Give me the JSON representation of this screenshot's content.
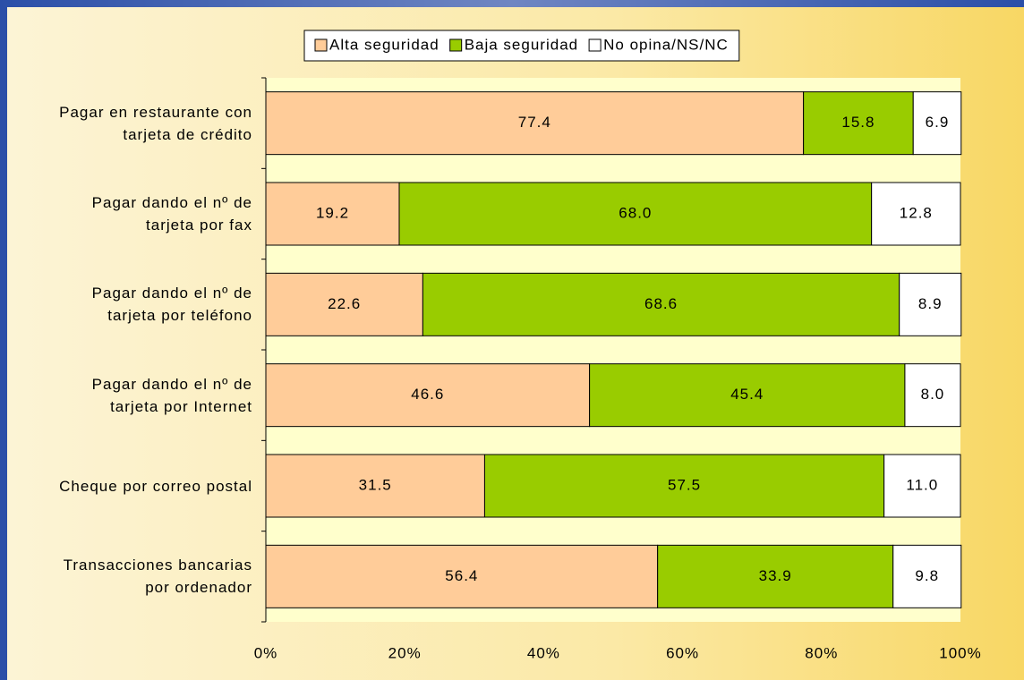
{
  "chart_data": {
    "type": "stacked_hbar",
    "categories": [
      "Pagar en restaurante con\ntarjeta de crédito",
      "Pagar dando el nº de\ntarjeta por fax",
      "Pagar dando el nº de\ntarjeta por teléfono",
      "Pagar dando el nº de\ntarjeta por Internet",
      "Cheque por correo postal",
      "Transacciones bancarias\npor ordenador"
    ],
    "series": [
      {
        "name": "Alta seguridad",
        "color": "#ffcc99",
        "values": [
          77.4,
          19.2,
          22.6,
          46.6,
          31.5,
          56.4
        ],
        "value_labels": [
          "77.4",
          "19.2",
          "22.6",
          "46.6",
          "31.5",
          "56.4"
        ]
      },
      {
        "name": "Baja seguridad",
        "color": "#99cc00",
        "values": [
          15.8,
          68.0,
          68.6,
          45.4,
          57.5,
          33.9
        ],
        "value_labels": [
          "15.8",
          "68.0",
          "68.6",
          "45.4",
          "57.5",
          "33.9"
        ]
      },
      {
        "name": "No opina/NS/NC",
        "color": "#ffffff",
        "values": [
          6.9,
          12.8,
          8.9,
          8.0,
          11.0,
          9.8
        ],
        "value_labels": [
          "6.9",
          "12.8",
          "8.9",
          "8.0",
          "11.0",
          "9.8"
        ]
      }
    ],
    "xlim": [
      0,
      100
    ],
    "xticks": [
      {
        "value": 0,
        "label": "0%"
      },
      {
        "value": 20,
        "label": "20%"
      },
      {
        "value": 40,
        "label": "40%"
      },
      {
        "value": 60,
        "label": "60%"
      },
      {
        "value": 80,
        "label": "80%"
      },
      {
        "value": 100,
        "label": "100%"
      }
    ],
    "legend": "top"
  }
}
